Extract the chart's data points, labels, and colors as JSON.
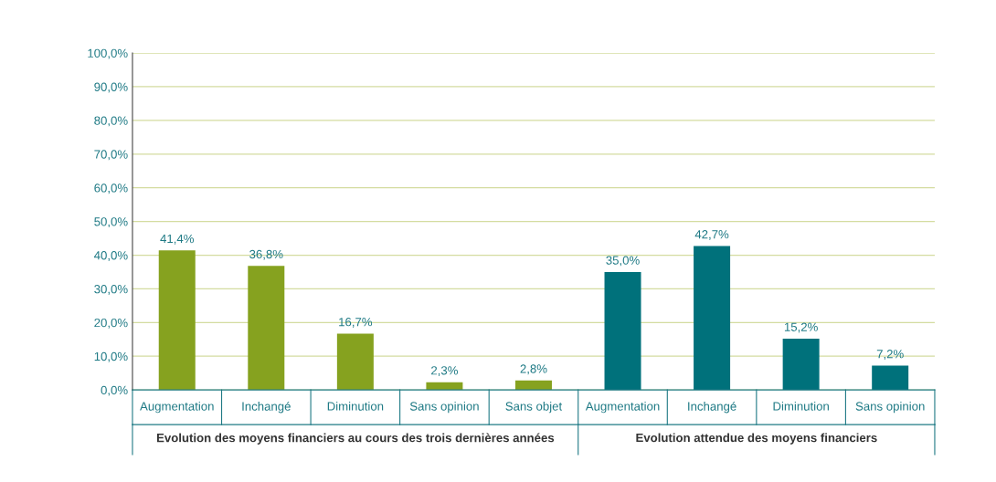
{
  "chart_data": {
    "type": "bar",
    "categories": [
      "Augmentation",
      "Inchangé",
      "Diminution",
      "Sans opinion",
      "Sans objet",
      "Augmentation",
      "Inchangé",
      "Diminution",
      "Sans opinion"
    ],
    "series": [
      {
        "color": "#86a21f",
        "values": [
          41.4,
          36.8,
          16.7,
          2.3,
          2.8,
          null,
          null,
          null,
          null
        ],
        "value_labels": [
          "41,4%",
          "36,8%",
          "16,7%",
          "2,3%",
          "2,8%",
          null,
          null,
          null,
          null
        ]
      },
      {
        "color": "#00717b",
        "values": [
          null,
          null,
          null,
          null,
          null,
          35.0,
          42.7,
          15.2,
          7.2
        ],
        "value_labels": [
          null,
          null,
          null,
          null,
          null,
          "35,0%",
          "42,7%",
          "15,2%",
          "7,2%"
        ]
      }
    ],
    "ylim": [
      0,
      100
    ],
    "yticks": [
      {
        "value": 0,
        "label": "0,0%"
      },
      {
        "value": 10,
        "label": "10,0%"
      },
      {
        "value": 20,
        "label": "20,0%"
      },
      {
        "value": 30,
        "label": "30,0%"
      },
      {
        "value": 40,
        "label": "40,0%"
      },
      {
        "value": 50,
        "label": "50,0%"
      },
      {
        "value": 60,
        "label": "60,0%"
      },
      {
        "value": 70,
        "label": "70,0%"
      },
      {
        "value": 80,
        "label": "80,0%"
      },
      {
        "value": 90,
        "label": "90,0%"
      },
      {
        "value": 100,
        "label": "100,0%"
      }
    ],
    "annotations": [
      "Evolution des moyens financiers au cours des trois dernières années",
      "Evolution attendue des moyens financiers"
    ],
    "grid": "y",
    "legend": false
  }
}
